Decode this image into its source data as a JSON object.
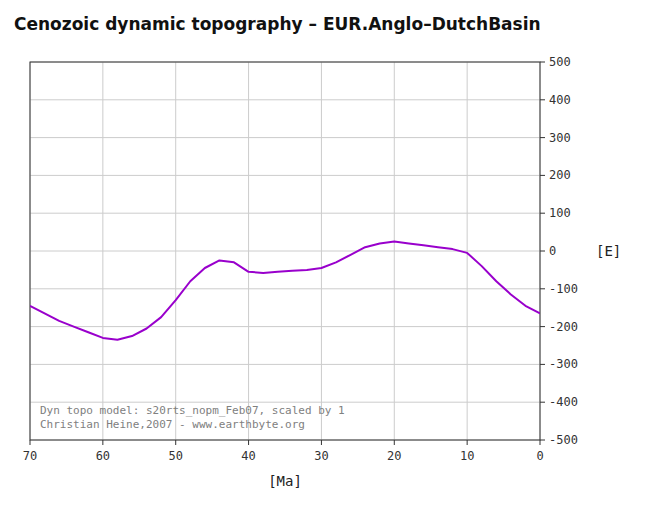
{
  "chart_data": {
    "type": "line",
    "title": "Cenozoic dynamic topography – EUR.Anglo–DutchBasin",
    "x_label": "[Ma]",
    "y_label": "[E]",
    "annotations": [
      "Dyn topo model: s20rts_nopm_Feb07, scaled by 1",
      "Christian Heine,2007 - www.earthbyte.org"
    ],
    "x": [
      70,
      68,
      66,
      64,
      62,
      60,
      58,
      56,
      54,
      52,
      50,
      48,
      46,
      44,
      42,
      40,
      38,
      36,
      34,
      32,
      30,
      28,
      26,
      24,
      22,
      20,
      18,
      16,
      14,
      12,
      10,
      8,
      6,
      4,
      2,
      0
    ],
    "values": [
      -145,
      -165,
      -185,
      -200,
      -215,
      -230,
      -235,
      -225,
      -205,
      -175,
      -130,
      -80,
      -45,
      -25,
      -30,
      -55,
      -58,
      -55,
      -52,
      -50,
      -45,
      -30,
      -10,
      10,
      20,
      25,
      20,
      15,
      10,
      5,
      -5,
      -40,
      -80,
      -115,
      -145,
      -165
    ],
    "color": "#9900cc",
    "xlim": [
      70,
      0
    ],
    "ylim": [
      -500,
      500
    ],
    "xticks": [
      70,
      60,
      50,
      40,
      30,
      20,
      10,
      0
    ],
    "yticks": [
      -500,
      -400,
      -300,
      -200,
      -100,
      0,
      100,
      200,
      300,
      400,
      500
    ],
    "grid": true
  }
}
